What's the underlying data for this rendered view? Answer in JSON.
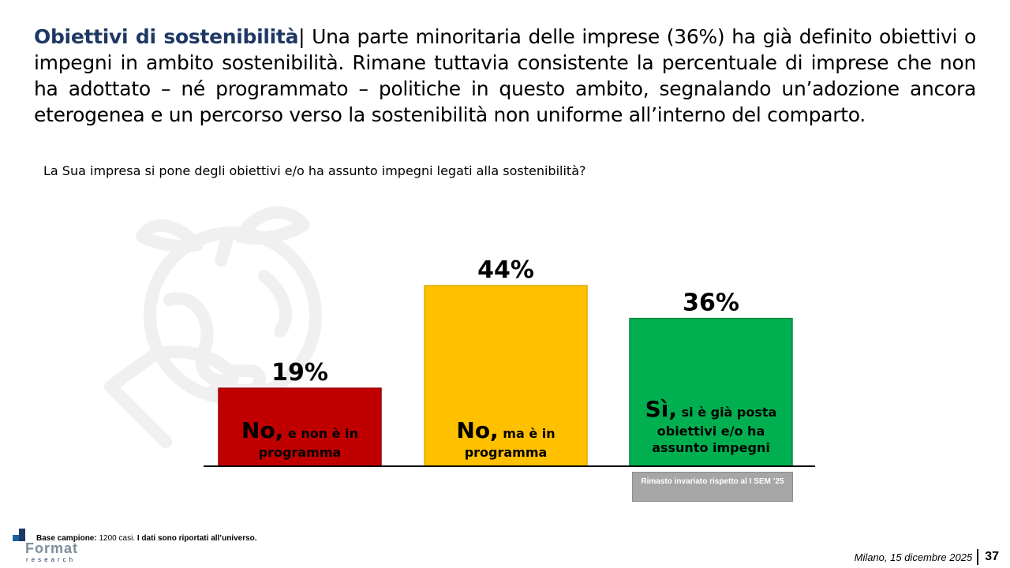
{
  "headline": {
    "lead": "Obiettivi di sostenibilità",
    "separator": "|",
    "text": " Una parte minoritaria delle imprese (36%) ha già definito obiettivi o impegni in ambito sostenibilità. Rimane tuttavia consistente la percentuale di imprese che non ha adottato – né programmato – politiche in questo ambito, segnalando un’adozione ancora eterogenea e un percorso verso la sostenibilità non uniforme all’interno del comparto."
  },
  "question": "La Sua impresa si pone degli obiettivi e/o ha assunto impegni legati alla sostenibilità?",
  "chart_data": {
    "type": "bar",
    "categories": [
      "No, e non è in programma",
      "No, ma è in programma",
      "Sì, si è già posta obiettivi e/o ha assunto impegni"
    ],
    "values": [
      19,
      44,
      36
    ],
    "value_labels": [
      "19%",
      "44%",
      "36%"
    ],
    "colors": [
      "#c00000",
      "#ffc000",
      "#00b050"
    ],
    "bar_labels": [
      {
        "big": "No,",
        "small_1": "e non è in",
        "small_2": "programma"
      },
      {
        "big": "No,",
        "small_1": "ma è in",
        "small_2": "programma"
      },
      {
        "big": "Sì,",
        "small_1": "si è già posta",
        "small_2": "obiettivi e/o ha",
        "small_3": "assunto impegni"
      }
    ],
    "title": "",
    "xlabel": "",
    "ylabel": "",
    "ylim": [
      0,
      50
    ],
    "grid": false
  },
  "note_box": "Rimasto invariato rispetto al I SEM ’25",
  "footer": {
    "base_label": "Base campione:",
    "base_value": " 1200 casi.",
    "base_note": " I dati sono riportati all’universo.",
    "logo_text": "Format",
    "logo_sub": "research",
    "date": "Milano, 15 dicembre 2025",
    "page": "37"
  },
  "colors": {
    "title_blue": "#1f3864",
    "bg_illustration": "#f0f0f0"
  }
}
